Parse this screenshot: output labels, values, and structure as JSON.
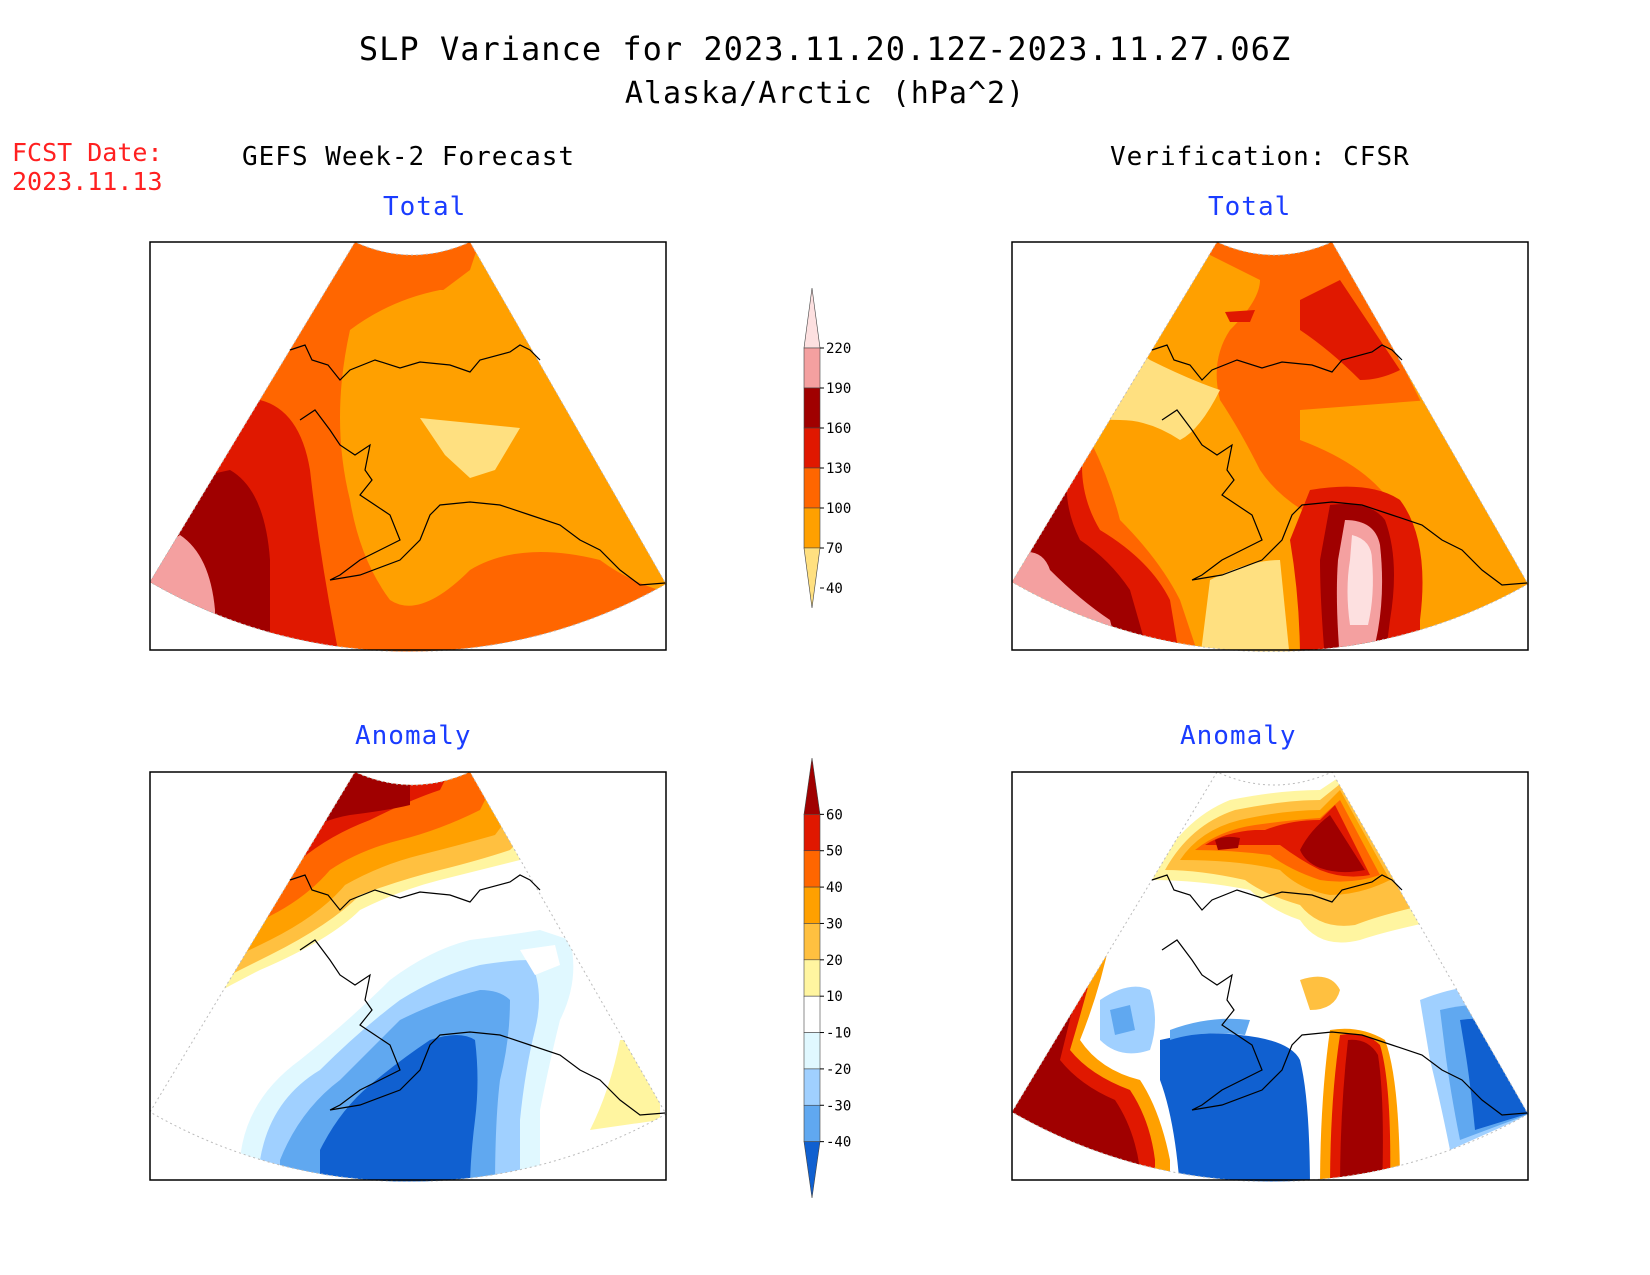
{
  "title": "SLP Variance for 2023.11.20.12Z-2023.11.27.06Z",
  "subtitle": "Alaska/Arctic (hPa^2)",
  "fcst_date": {
    "label": "FCST Date:",
    "value": "2023.11.13"
  },
  "columns": {
    "left": "GEFS Week-2 Forecast",
    "right": "Verification: CFSR"
  },
  "panels": {
    "top_left": "Total",
    "top_right": "Total",
    "bottom_left": "Anomaly",
    "bottom_right": "Anomaly"
  },
  "colorbars": {
    "total": {
      "levels": [
        "220",
        "190",
        "160",
        "130",
        "100",
        "70",
        "40"
      ],
      "colors": [
        "#fde0e0",
        "#f4a0a0",
        "#a00000",
        "#e01800",
        "#ff6600",
        "#ffa000",
        "#ffe080"
      ]
    },
    "anomaly": {
      "levels": [
        "60",
        "50",
        "40",
        "30",
        "20",
        "10",
        "-10",
        "-20",
        "-30",
        "-40"
      ],
      "colors": [
        "#a00000",
        "#e01800",
        "#ff6600",
        "#ffa000",
        "#ffc040",
        "#fff5a0",
        "#ffffff",
        "#e0f8ff",
        "#a0d0ff",
        "#60a8f0",
        "#1060d0"
      ]
    }
  }
}
